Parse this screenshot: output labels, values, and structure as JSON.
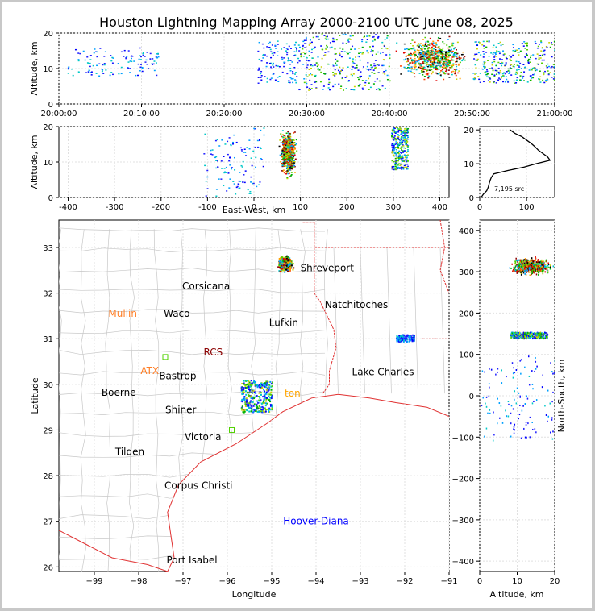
{
  "chart_data": [
    {
      "type": "scatter",
      "panel": "time-altitude",
      "title": "Houston Lightning Mapping Array 2000-2100 UTC June 08, 2025",
      "ylabel": "Altitude, km",
      "xlabel": "",
      "x_ticks": [
        "20:00:00",
        "20:10:00",
        "20:20:00",
        "20:30:00",
        "20:40:00",
        "20:50:00",
        "21:00:00"
      ],
      "y_ticks": [
        0,
        10,
        20
      ],
      "xlim_minutes": [
        0,
        60
      ],
      "ylim": [
        0,
        20
      ],
      "clusters_minutes_km": [
        {
          "x": [
            1,
            12
          ],
          "y": [
            8,
            16
          ],
          "density": "sparse"
        },
        {
          "x": [
            24,
            29
          ],
          "y": [
            6,
            18
          ],
          "density": "sparse"
        },
        {
          "x": [
            29,
            40
          ],
          "y": [
            4,
            20
          ],
          "density": "moderate"
        },
        {
          "x": [
            40,
            50
          ],
          "y": [
            6,
            20
          ],
          "density": "dense"
        },
        {
          "x": [
            50,
            60
          ],
          "y": [
            6,
            18
          ],
          "density": "moderate"
        }
      ]
    },
    {
      "type": "scatter",
      "panel": "east-west-altitude",
      "xlabel": "East-West, km",
      "ylabel": "Altitude, km",
      "x_ticks": [
        -400,
        -300,
        -200,
        -100,
        0,
        100,
        200,
        300,
        400
      ],
      "y_ticks": [
        0,
        10,
        20
      ],
      "xlim": [
        -420,
        420
      ],
      "ylim": [
        0,
        20
      ],
      "clusters_km": [
        {
          "x": [
            -110,
            20
          ],
          "y": [
            0,
            20
          ],
          "density": "sparse"
        },
        {
          "x": [
            50,
            95
          ],
          "y": [
            5,
            20
          ],
          "density": "dense"
        },
        {
          "x": [
            295,
            330
          ],
          "y": [
            8,
            20
          ],
          "density": "moderate"
        }
      ]
    },
    {
      "type": "line",
      "panel": "altitude-histogram",
      "annotation": "7,195 src",
      "x_ticks": [
        0,
        100
      ],
      "y_ticks": [
        0,
        10,
        20
      ],
      "xlim": [
        0,
        160
      ],
      "ylim": [
        0,
        21
      ],
      "profile": [
        {
          "alt": 0,
          "count": 3
        },
        {
          "alt": 1,
          "count": 8
        },
        {
          "alt": 2,
          "count": 15
        },
        {
          "alt": 3,
          "count": 18
        },
        {
          "alt": 4,
          "count": 20
        },
        {
          "alt": 5,
          "count": 22
        },
        {
          "alt": 6,
          "count": 25
        },
        {
          "alt": 7,
          "count": 30
        },
        {
          "alt": 8,
          "count": 60
        },
        {
          "alt": 9,
          "count": 95
        },
        {
          "alt": 10,
          "count": 120
        },
        {
          "alt": 11,
          "count": 150
        },
        {
          "alt": 12,
          "count": 145
        },
        {
          "alt": 13,
          "count": 135
        },
        {
          "alt": 14,
          "count": 125
        },
        {
          "alt": 15,
          "count": 118
        },
        {
          "alt": 16,
          "count": 110
        },
        {
          "alt": 17,
          "count": 100
        },
        {
          "alt": 18,
          "count": 90
        },
        {
          "alt": 19,
          "count": 75
        },
        {
          "alt": 20,
          "count": 65
        }
      ]
    },
    {
      "type": "scatter",
      "panel": "plan-view-map",
      "xlabel": "Longitude",
      "ylabel": "Latitude",
      "x_ticks": [
        -99,
        -98,
        -97,
        -96,
        -95,
        -94,
        -93,
        -92,
        -91
      ],
      "y_ticks": [
        26,
        27,
        28,
        29,
        30,
        31,
        32,
        33
      ],
      "xlim": [
        -99.8,
        -91
      ],
      "ylim": [
        25.9,
        33.6
      ],
      "clusters_lonlat": [
        {
          "lon": [
            -95.7,
            -95.0
          ],
          "lat": [
            29.4,
            30.1
          ],
          "density": "moderate"
        },
        {
          "lon": [
            -94.9,
            -94.5
          ],
          "lat": [
            32.45,
            32.85
          ],
          "density": "dense"
        },
        {
          "lon": [
            -92.2,
            -91.8
          ],
          "lat": [
            30.95,
            31.1
          ],
          "density": "sparse"
        }
      ],
      "cities": [
        {
          "name": "Shreveport",
          "lon": -93.75,
          "lat": 32.55,
          "color": "#000000"
        },
        {
          "name": "Corsicana",
          "lon": -96.48,
          "lat": 32.15,
          "color": "#000000"
        },
        {
          "name": "Mullin",
          "lon": -98.36,
          "lat": 31.55,
          "color": "#ff7f27"
        },
        {
          "name": "Waco",
          "lon": -97.14,
          "lat": 31.55,
          "color": "#000000"
        },
        {
          "name": "Natchitoches",
          "lon": -93.09,
          "lat": 31.75,
          "color": "#000000"
        },
        {
          "name": "Lufkin",
          "lon": -94.73,
          "lat": 31.35,
          "color": "#000000"
        },
        {
          "name": "RCS",
          "lon": -96.32,
          "lat": 30.7,
          "color": "#8b0000"
        },
        {
          "name": "ATX",
          "lon": -97.75,
          "lat": 30.3,
          "color": "#ff7f27"
        },
        {
          "name": "Bastrop",
          "lon": -97.12,
          "lat": 30.18,
          "color": "#000000"
        },
        {
          "name": "Lake Charles",
          "lon": -92.49,
          "lat": 30.27,
          "color": "#000000"
        },
        {
          "name": "Boerne",
          "lon": -98.45,
          "lat": 29.82,
          "color": "#000000"
        },
        {
          "name": "ton",
          "lon": -94.53,
          "lat": 29.8,
          "color": "#ffa500"
        },
        {
          "name": "Shiner",
          "lon": -97.05,
          "lat": 29.44,
          "color": "#000000"
        },
        {
          "name": "Victoria",
          "lon": -96.55,
          "lat": 28.85,
          "color": "#000000"
        },
        {
          "name": "Tilden",
          "lon": -98.2,
          "lat": 28.52,
          "color": "#000000"
        },
        {
          "name": "Corpus Christi",
          "lon": -96.65,
          "lat": 27.78,
          "color": "#000000"
        },
        {
          "name": "Hoover-Diana",
          "lon": -94.0,
          "lat": 27.0,
          "color": "#0000ff"
        },
        {
          "name": "Port Isabel",
          "lon": -96.8,
          "lat": 26.15,
          "color": "#000000"
        }
      ]
    },
    {
      "type": "scatter",
      "panel": "altitude-north-south",
      "xlabel": "Altitude, km",
      "ylabel": "North-South, km",
      "x_ticks": [
        0,
        10,
        20
      ],
      "y_ticks": [
        -400,
        -300,
        -200,
        -100,
        0,
        100,
        200,
        300,
        400
      ],
      "xlim": [
        0,
        20
      ],
      "ylim": [
        -425,
        425
      ],
      "clusters_km": [
        {
          "x": [
            7,
            20
          ],
          "y": [
            290,
            340
          ],
          "density": "dense"
        },
        {
          "x": [
            8,
            18
          ],
          "y": [
            140,
            155
          ],
          "density": "moderate"
        },
        {
          "x": [
            0,
            20
          ],
          "y": [
            -110,
            100
          ],
          "density": "sparse"
        }
      ]
    }
  ]
}
